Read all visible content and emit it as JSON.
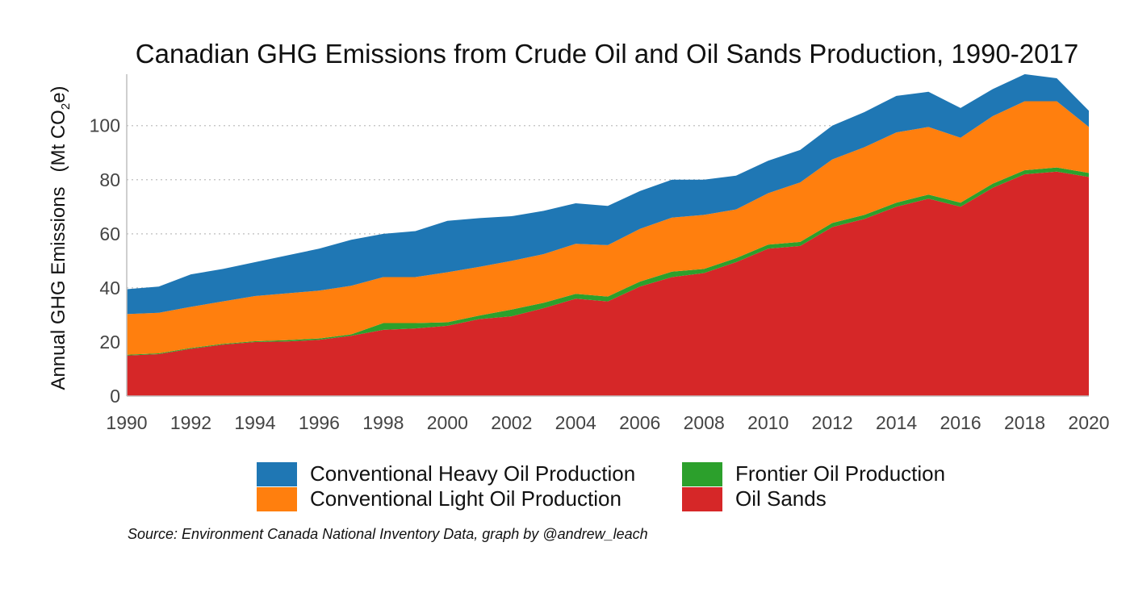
{
  "chart_data": {
    "type": "area",
    "stacked": true,
    "title": "Canadian GHG Emissions from Crude Oil and Oil Sands Production, 1990-2017",
    "ylabel": "Annual GHG Emissions   (Mt CO2e)",
    "ylabel_main": "Annual GHG Emissions",
    "ylabel_unit_prefix": "(Mt CO",
    "ylabel_unit_sub": "2",
    "ylabel_unit_suffix": "e)",
    "xlabel": "",
    "xlim": [
      1990,
      2020
    ],
    "ylim": [
      0,
      119
    ],
    "x_ticks": [
      "1990",
      "1992",
      "1994",
      "1996",
      "1998",
      "2000",
      "2002",
      "2004",
      "2006",
      "2008",
      "2010",
      "2012",
      "2014",
      "2016",
      "2018",
      "2020"
    ],
    "y_ticks": [
      "0",
      "20",
      "40",
      "60",
      "80",
      "100"
    ],
    "grid": "horizontal dotted",
    "legend_position": "bottom",
    "source": "Source: Environment Canada National Inventory Data, graph by @andrew_leach",
    "x": [
      1990,
      1991,
      1992,
      1993,
      1994,
      1995,
      1996,
      1997,
      1998,
      1999,
      2000,
      2001,
      2002,
      2003,
      2004,
      2005,
      2006,
      2007,
      2008,
      2009,
      2010,
      2011,
      2012,
      2013,
      2014,
      2015,
      2016,
      2017,
      2018,
      2019,
      2020
    ],
    "series": [
      {
        "name": "Oil Sands",
        "color": "#d62728",
        "values": [
          15,
          15.5,
          17.5,
          19,
          20,
          20.2,
          20.8,
          22.3,
          24.5,
          25,
          26,
          28.5,
          29.5,
          32.5,
          36,
          35,
          40.5,
          44,
          45.5,
          49.5,
          54.5,
          55.5,
          62.5,
          65.5,
          70,
          73,
          70,
          77,
          82,
          83,
          81
        ]
      },
      {
        "name": "Frontier Oil Production",
        "color": "#2ca02c",
        "values": [
          0.3,
          0.3,
          0.3,
          0.3,
          0.3,
          0.5,
          0.5,
          0.5,
          2.5,
          2,
          1.3,
          1.3,
          2.5,
          2,
          1.8,
          1.8,
          1.8,
          2,
          1.5,
          1.5,
          1.5,
          1.5,
          1.5,
          1.5,
          1.5,
          1.5,
          1.5,
          1.5,
          1.5,
          1.5,
          1.5
        ]
      },
      {
        "name": "Conventional Light Oil Production",
        "color": "#ff7f0e",
        "values": [
          15,
          15,
          15.2,
          15.7,
          16.7,
          17.3,
          17.7,
          18,
          17,
          17,
          18.5,
          18,
          18,
          18,
          18.5,
          19,
          19.5,
          20,
          20,
          18,
          19,
          22,
          23.5,
          25,
          26,
          25,
          24,
          25,
          25.5,
          24.5,
          17
        ]
      },
      {
        "name": "Conventional Heavy Oil Production",
        "color": "#1f77b4",
        "values": [
          9.2,
          9.7,
          12,
          12,
          12.5,
          14,
          15.5,
          17,
          16,
          17,
          19,
          18,
          16.5,
          16,
          15,
          14.5,
          14,
          14,
          13,
          12.5,
          12,
          12,
          12.5,
          13,
          13.5,
          13,
          11,
          10,
          10,
          8.5,
          6
        ]
      }
    ]
  },
  "legend": {
    "heavy": "Conventional Heavy Oil Production",
    "light": "Conventional Light Oil Production",
    "frontier": "Frontier Oil Production",
    "oilsands": "Oil Sands"
  }
}
